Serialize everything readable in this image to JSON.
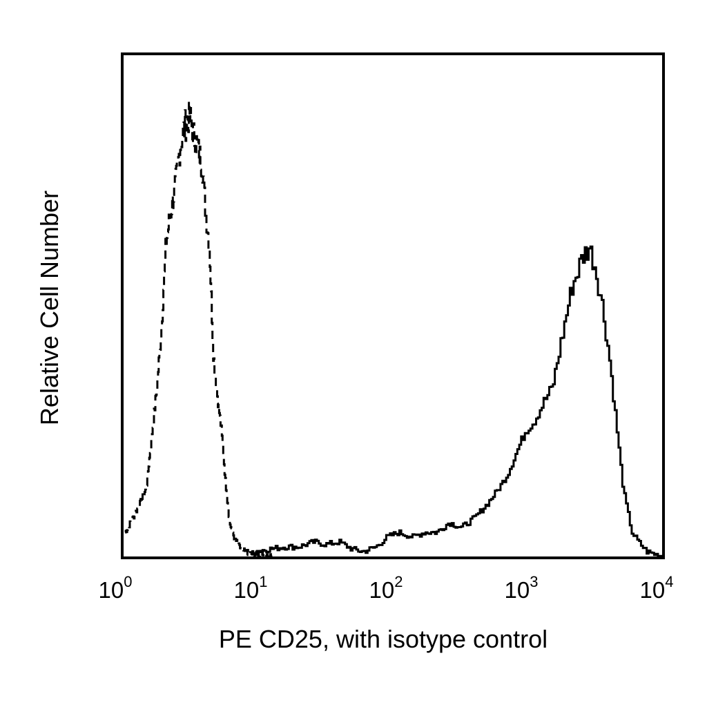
{
  "chart_data": {
    "type": "line",
    "title": "",
    "xlabel": "PE CD25, with isotype control",
    "ylabel": "Relative Cell Number",
    "x_scale": "log",
    "xlim": [
      1,
      10000
    ],
    "ylim": [
      0,
      100
    ],
    "grid": false,
    "y_ticks_shown": false,
    "x_ticks": [
      {
        "base": "10",
        "exp": "0",
        "value": 1
      },
      {
        "base": "10",
        "exp": "1",
        "value": 10
      },
      {
        "base": "10",
        "exp": "2",
        "value": 100
      },
      {
        "base": "10",
        "exp": "3",
        "value": 1000
      },
      {
        "base": "10",
        "exp": "4",
        "value": 10000
      }
    ],
    "series": [
      {
        "style": "dashed",
        "color": "#000000",
        "x": [
          1.05,
          1.2,
          1.35,
          1.5,
          1.65,
          1.8,
          1.95,
          2.1,
          2.3,
          2.5,
          2.7,
          2.9,
          3.05,
          3.2,
          3.35,
          3.5,
          3.7,
          3.9,
          4.1,
          4.4,
          4.7,
          5.0,
          5.4,
          5.8,
          6.2,
          6.7,
          7.3,
          8.0,
          9.0,
          10.5,
          13
        ],
        "y": [
          5,
          8,
          11,
          14,
          25,
          35,
          48,
          65,
          72,
          78,
          86,
          89,
          91,
          90,
          87,
          86,
          83,
          81,
          72,
          64,
          42,
          34,
          26,
          15,
          7,
          4,
          2,
          1,
          0.5,
          0.3,
          0
        ]
      },
      {
        "style": "solid",
        "color": "#000000",
        "x": [
          9,
          12,
          16,
          20,
          26,
          32,
          40,
          50,
          60,
          75,
          90,
          110,
          140,
          170,
          210,
          260,
          320,
          400,
          500,
          600,
          700,
          800,
          950,
          1100,
          1300,
          1500,
          1700,
          1900,
          2100,
          2300,
          2500,
          2800,
          3100,
          3500,
          4000,
          4500,
          5000,
          5800,
          6500,
          7500,
          9000,
          10000
        ],
        "y": [
          1,
          1.5,
          2,
          2,
          3,
          2.5,
          3,
          1.5,
          1,
          2,
          4,
          5,
          4,
          5,
          5,
          7,
          6,
          8,
          11,
          14,
          17,
          21,
          26,
          28,
          32,
          35,
          43,
          50,
          56,
          59,
          62,
          64,
          60,
          52,
          40,
          26,
          14,
          5,
          3,
          1,
          0.3,
          0
        ]
      }
    ]
  }
}
